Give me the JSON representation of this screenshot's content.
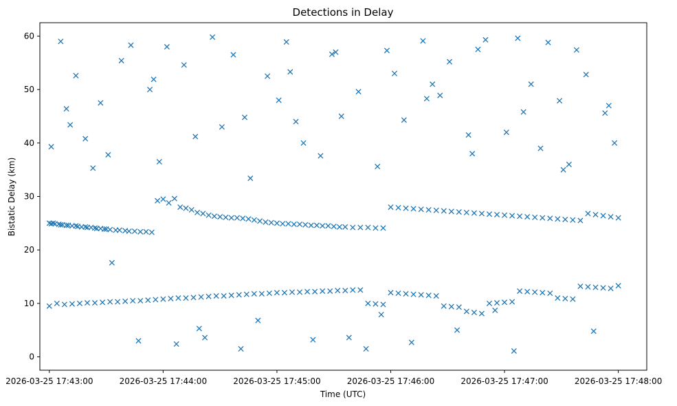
{
  "chart_data": {
    "type": "scatter",
    "title": "Detections in Delay",
    "xlabel": "Time (UTC)",
    "ylabel": "Bistatic Delay (km)",
    "marker": "x",
    "color": "#1f77b4",
    "grid": false,
    "legend": "none",
    "xlim": [
      "2026-03-25 17:42:55",
      "2026-03-25 17:48:15"
    ],
    "ylim": [
      -2.5,
      62.5
    ],
    "x_ticks": [
      "2026-03-25 17:43:00",
      "2026-03-25 17:44:00",
      "2026-03-25 17:45:00",
      "2026-03-25 17:46:00",
      "2026-03-25 17:47:00",
      "2026-03-25 17:48:00"
    ],
    "y_ticks": [
      0,
      10,
      20,
      30,
      40,
      50,
      60
    ],
    "series": [
      {
        "x": [
          "2026-03-25 17:43:00",
          "2026-03-25 17:43:01",
          "2026-03-25 17:43:02",
          "2026-03-25 17:43:03",
          "2026-03-25 17:43:05",
          "2026-03-25 17:43:06",
          "2026-03-25 17:43:07",
          "2026-03-25 17:43:09",
          "2026-03-25 17:43:10",
          "2026-03-25 17:43:12",
          "2026-03-25 17:43:14",
          "2026-03-25 17:43:15",
          "2026-03-25 17:43:17",
          "2026-03-25 17:43:19",
          "2026-03-25 17:43:20",
          "2026-03-25 17:43:22",
          "2026-03-25 17:43:24",
          "2026-03-25 17:43:25",
          "2026-03-25 17:43:27",
          "2026-03-25 17:43:29",
          "2026-03-25 17:43:30",
          "2026-03-25 17:43:32",
          "2026-03-25 17:43:35",
          "2026-03-25 17:43:37",
          "2026-03-25 17:43:40",
          "2026-03-25 17:43:42",
          "2026-03-25 17:43:45",
          "2026-03-25 17:43:48",
          "2026-03-25 17:43:51",
          "2026-03-25 17:43:54",
          "2026-03-25 17:43:57",
          "2026-03-25 17:44:00",
          "2026-03-25 17:44:03",
          "2026-03-25 17:44:06",
          "2026-03-25 17:44:09",
          "2026-03-25 17:44:12",
          "2026-03-25 17:44:15",
          "2026-03-25 17:44:18",
          "2026-03-25 17:44:21",
          "2026-03-25 17:44:24",
          "2026-03-25 17:44:27",
          "2026-03-25 17:44:30",
          "2026-03-25 17:44:33",
          "2026-03-25 17:44:36",
          "2026-03-25 17:44:39",
          "2026-03-25 17:44:42",
          "2026-03-25 17:44:45",
          "2026-03-25 17:44:48",
          "2026-03-25 17:44:51",
          "2026-03-25 17:44:54",
          "2026-03-25 17:44:57",
          "2026-03-25 17:45:00",
          "2026-03-25 17:45:03",
          "2026-03-25 17:45:06",
          "2026-03-25 17:45:09",
          "2026-03-25 17:45:12",
          "2026-03-25 17:45:15",
          "2026-03-25 17:45:18",
          "2026-03-25 17:45:21",
          "2026-03-25 17:45:24",
          "2026-03-25 17:45:27",
          "2026-03-25 17:45:30",
          "2026-03-25 17:45:33",
          "2026-03-25 17:45:36",
          "2026-03-25 17:45:40",
          "2026-03-25 17:45:44",
          "2026-03-25 17:45:48",
          "2026-03-25 17:45:52",
          "2026-03-25 17:45:56",
          "2026-03-25 17:46:00",
          "2026-03-25 17:46:04",
          "2026-03-25 17:46:08",
          "2026-03-25 17:46:12",
          "2026-03-25 17:46:16",
          "2026-03-25 17:46:20",
          "2026-03-25 17:46:24",
          "2026-03-25 17:46:28",
          "2026-03-25 17:46:32",
          "2026-03-25 17:46:36",
          "2026-03-25 17:46:40",
          "2026-03-25 17:46:44",
          "2026-03-25 17:46:48",
          "2026-03-25 17:46:52",
          "2026-03-25 17:46:56",
          "2026-03-25 17:47:00",
          "2026-03-25 17:47:04",
          "2026-03-25 17:47:08",
          "2026-03-25 17:47:12",
          "2026-03-25 17:47:16",
          "2026-03-25 17:47:20",
          "2026-03-25 17:47:24",
          "2026-03-25 17:47:28",
          "2026-03-25 17:47:32",
          "2026-03-25 17:47:36",
          "2026-03-25 17:47:40",
          "2026-03-25 17:47:44",
          "2026-03-25 17:47:48",
          "2026-03-25 17:47:52",
          "2026-03-25 17:47:56",
          "2026-03-25 17:48:00",
          "2026-03-25 17:43:00",
          "2026-03-25 17:43:04",
          "2026-03-25 17:43:08",
          "2026-03-25 17:43:12",
          "2026-03-25 17:43:16",
          "2026-03-25 17:43:20",
          "2026-03-25 17:43:24",
          "2026-03-25 17:43:28",
          "2026-03-25 17:43:32",
          "2026-03-25 17:43:36",
          "2026-03-25 17:43:40",
          "2026-03-25 17:43:44",
          "2026-03-25 17:43:48",
          "2026-03-25 17:43:52",
          "2026-03-25 17:43:56",
          "2026-03-25 17:44:00",
          "2026-03-25 17:44:04",
          "2026-03-25 17:44:08",
          "2026-03-25 17:44:12",
          "2026-03-25 17:44:16",
          "2026-03-25 17:44:20",
          "2026-03-25 17:44:24",
          "2026-03-25 17:44:28",
          "2026-03-25 17:44:32",
          "2026-03-25 17:44:36",
          "2026-03-25 17:44:40",
          "2026-03-25 17:44:44",
          "2026-03-25 17:44:48",
          "2026-03-25 17:44:52",
          "2026-03-25 17:44:56",
          "2026-03-25 17:45:00",
          "2026-03-25 17:45:04",
          "2026-03-25 17:45:08",
          "2026-03-25 17:45:12",
          "2026-03-25 17:45:16",
          "2026-03-25 17:45:20",
          "2026-03-25 17:45:24",
          "2026-03-25 17:45:28",
          "2026-03-25 17:45:32",
          "2026-03-25 17:45:36",
          "2026-03-25 17:45:40",
          "2026-03-25 17:45:44",
          "2026-03-25 17:45:48",
          "2026-03-25 17:45:52",
          "2026-03-25 17:45:56",
          "2026-03-25 17:46:00",
          "2026-03-25 17:46:04",
          "2026-03-25 17:46:08",
          "2026-03-25 17:46:12",
          "2026-03-25 17:46:16",
          "2026-03-25 17:46:20",
          "2026-03-25 17:46:24",
          "2026-03-25 17:46:28",
          "2026-03-25 17:46:32",
          "2026-03-25 17:46:36",
          "2026-03-25 17:46:40",
          "2026-03-25 17:46:44",
          "2026-03-25 17:46:48",
          "2026-03-25 17:46:52",
          "2026-03-25 17:46:56",
          "2026-03-25 17:47:00",
          "2026-03-25 17:47:04",
          "2026-03-25 17:47:08",
          "2026-03-25 17:47:12",
          "2026-03-25 17:47:16",
          "2026-03-25 17:47:20",
          "2026-03-25 17:47:24",
          "2026-03-25 17:47:28",
          "2026-03-25 17:47:32",
          "2026-03-25 17:47:36",
          "2026-03-25 17:47:40",
          "2026-03-25 17:47:44",
          "2026-03-25 17:47:48",
          "2026-03-25 17:47:52",
          "2026-03-25 17:47:56",
          "2026-03-25 17:48:00",
          "2026-03-25 17:43:01",
          "2026-03-25 17:43:06",
          "2026-03-25 17:43:11",
          "2026-03-25 17:43:14",
          "2026-03-25 17:43:19",
          "2026-03-25 17:43:23",
          "2026-03-25 17:43:27",
          "2026-03-25 17:43:33",
          "2026-03-25 17:43:38",
          "2026-03-25 17:43:43",
          "2026-03-25 17:43:47",
          "2026-03-25 17:43:53",
          "2026-03-25 17:43:58",
          "2026-03-25 17:44:02",
          "2026-03-25 17:44:07",
          "2026-03-25 17:44:11",
          "2026-03-25 17:44:17",
          "2026-03-25 17:44:22",
          "2026-03-25 17:44:26",
          "2026-03-25 17:44:31",
          "2026-03-25 17:44:37",
          "2026-03-25 17:44:41",
          "2026-03-25 17:44:46",
          "2026-03-25 17:44:50",
          "2026-03-25 17:44:55",
          "2026-03-25 17:45:01",
          "2026-03-25 17:45:05",
          "2026-03-25 17:45:10",
          "2026-03-25 17:45:14",
          "2026-03-25 17:45:19",
          "2026-03-25 17:45:23",
          "2026-03-25 17:45:29",
          "2026-03-25 17:45:34",
          "2026-03-25 17:45:38",
          "2026-03-25 17:45:43",
          "2026-03-25 17:45:47",
          "2026-03-25 17:45:53",
          "2026-03-25 17:45:58",
          "2026-03-25 17:46:02",
          "2026-03-25 17:46:07",
          "2026-03-25 17:46:11",
          "2026-03-25 17:46:17",
          "2026-03-25 17:46:22",
          "2026-03-25 17:46:26",
          "2026-03-25 17:46:31",
          "2026-03-25 17:46:35",
          "2026-03-25 17:46:41",
          "2026-03-25 17:46:46",
          "2026-03-25 17:46:50",
          "2026-03-25 17:46:55",
          "2026-03-25 17:47:01",
          "2026-03-25 17:47:05",
          "2026-03-25 17:47:10",
          "2026-03-25 17:47:14",
          "2026-03-25 17:47:19",
          "2026-03-25 17:47:23",
          "2026-03-25 17:47:29",
          "2026-03-25 17:47:34",
          "2026-03-25 17:47:38",
          "2026-03-25 17:47:43",
          "2026-03-25 17:47:47",
          "2026-03-25 17:47:53",
          "2026-03-25 17:47:58",
          "2026-03-25 17:43:09",
          "2026-03-25 17:43:31",
          "2026-03-25 17:43:55",
          "2026-03-25 17:44:19",
          "2026-03-25 17:44:43",
          "2026-03-25 17:45:07",
          "2026-03-25 17:45:31",
          "2026-03-25 17:45:55",
          "2026-03-25 17:46:19",
          "2026-03-25 17:46:43",
          "2026-03-25 17:47:07",
          "2026-03-25 17:47:31",
          "2026-03-25 17:47:55"
        ],
        "y": [
          25.0,
          24.9,
          25.0,
          24.9,
          24.8,
          24.7,
          24.7,
          24.6,
          24.6,
          24.5,
          24.5,
          24.4,
          24.3,
          24.3,
          24.2,
          24.2,
          24.1,
          24.0,
          24.0,
          23.9,
          23.9,
          23.8,
          23.7,
          23.7,
          23.6,
          23.5,
          23.5,
          23.4,
          23.4,
          23.3,
          29.2,
          29.5,
          28.8,
          29.6,
          28.0,
          27.8,
          27.5,
          27.0,
          26.8,
          26.5,
          26.3,
          26.2,
          26.1,
          26.0,
          26.0,
          25.9,
          25.8,
          25.6,
          25.4,
          25.2,
          25.1,
          25.0,
          24.9,
          24.9,
          24.8,
          24.8,
          24.7,
          24.6,
          24.6,
          24.5,
          24.5,
          24.4,
          24.3,
          24.3,
          24.2,
          24.2,
          24.2,
          24.1,
          24.1,
          28.0,
          27.9,
          27.8,
          27.7,
          27.6,
          27.5,
          27.4,
          27.3,
          27.2,
          27.1,
          27.0,
          26.9,
          26.8,
          26.7,
          26.6,
          26.5,
          26.4,
          26.3,
          26.2,
          26.1,
          26.0,
          25.9,
          25.8,
          25.7,
          25.6,
          25.5,
          26.8,
          26.6,
          26.4,
          26.2,
          26.0,
          9.5,
          10.0,
          9.8,
          9.9,
          10.0,
          10.1,
          10.1,
          10.2,
          10.3,
          10.3,
          10.4,
          10.5,
          10.5,
          10.6,
          10.7,
          10.8,
          10.9,
          11.0,
          11.0,
          11.1,
          11.2,
          11.3,
          11.4,
          11.4,
          11.5,
          11.6,
          11.7,
          11.8,
          11.8,
          11.9,
          12.0,
          12.0,
          12.1,
          12.1,
          12.2,
          12.2,
          12.3,
          12.3,
          12.4,
          12.4,
          12.5,
          12.5,
          10.0,
          9.9,
          9.8,
          12.0,
          11.9,
          11.8,
          11.7,
          11.6,
          11.5,
          11.4,
          9.5,
          9.4,
          9.3,
          8.5,
          8.3,
          8.1,
          10.0,
          10.1,
          10.2,
          10.3,
          12.3,
          12.2,
          12.1,
          12.0,
          11.9,
          11.0,
          10.9,
          10.8,
          13.2,
          13.1,
          13.0,
          12.9,
          12.8,
          13.3,
          39.3,
          59.0,
          43.4,
          52.6,
          40.8,
          35.3,
          47.5,
          17.6,
          55.4,
          58.3,
          3.0,
          50.0,
          36.5,
          58.0,
          2.4,
          54.6,
          41.2,
          3.6,
          59.8,
          43.0,
          56.5,
          1.5,
          33.4,
          6.8,
          52.5,
          48.0,
          58.9,
          44.0,
          40.0,
          3.2,
          37.6,
          56.6,
          45.0,
          3.6,
          49.6,
          1.5,
          35.6,
          57.3,
          53.0,
          44.3,
          2.7,
          59.1,
          51.0,
          48.9,
          55.2,
          5.0,
          41.5,
          57.5,
          59.3,
          8.7,
          42.0,
          1.1,
          45.8,
          51.0,
          39.0,
          58.8,
          47.9,
          36.0,
          57.4,
          52.8,
          4.8,
          45.6,
          40.0,
          46.4,
          37.8,
          51.9,
          5.3,
          44.8,
          53.3,
          57.0,
          7.9,
          48.3,
          38.0,
          59.6,
          35.0,
          47.0
        ]
      }
    ]
  }
}
